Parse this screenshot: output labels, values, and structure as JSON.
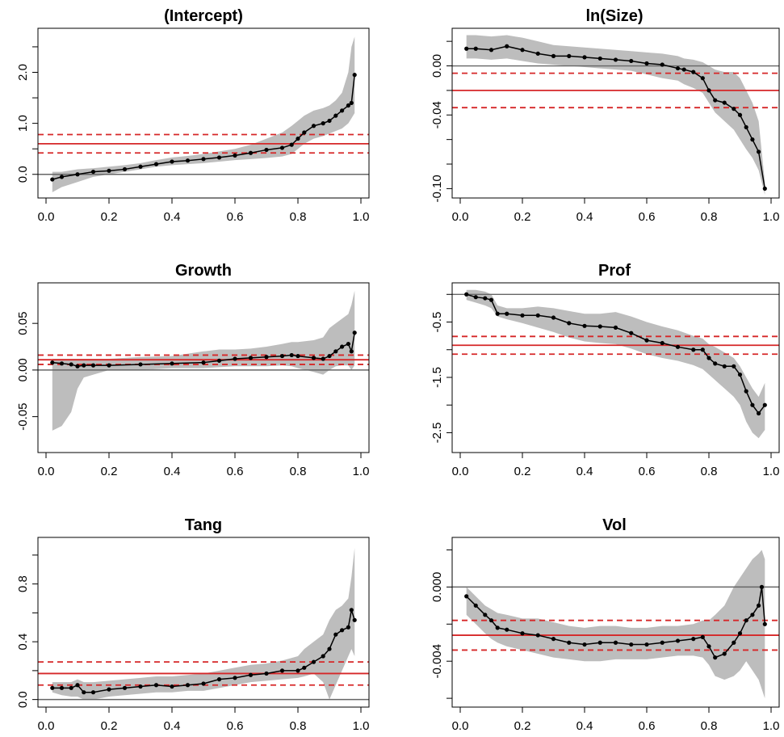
{
  "chart_data": [
    {
      "type": "line",
      "title": "(Intercept)",
      "xlabel": "",
      "ylabel": "",
      "xlim": [
        0,
        1
      ],
      "ylim": [
        -0.4,
        2.8
      ],
      "xticks": [
        "0.0",
        "0.2",
        "0.4",
        "0.6",
        "0.8",
        "1.0"
      ],
      "yticks": [
        "0.0",
        "1.0",
        "2.0"
      ],
      "ytick_values": [
        0.0,
        1.0,
        2.0
      ],
      "ytick_minor": [
        0.5,
        1.5,
        2.5
      ],
      "zero_line": 0,
      "ols": {
        "estimate": 0.6,
        "ci_low": 0.42,
        "ci_high": 0.78
      },
      "x": [
        0.02,
        0.05,
        0.1,
        0.15,
        0.2,
        0.25,
        0.3,
        0.35,
        0.4,
        0.45,
        0.5,
        0.55,
        0.6,
        0.65,
        0.7,
        0.75,
        0.78,
        0.8,
        0.82,
        0.85,
        0.88,
        0.9,
        0.92,
        0.94,
        0.96,
        0.97,
        0.98
      ],
      "y": [
        -0.1,
        -0.05,
        0.0,
        0.05,
        0.07,
        0.1,
        0.15,
        0.2,
        0.25,
        0.27,
        0.3,
        0.33,
        0.37,
        0.42,
        0.48,
        0.52,
        0.58,
        0.7,
        0.82,
        0.95,
        1.0,
        1.05,
        1.15,
        1.25,
        1.35,
        1.4,
        1.95
      ],
      "band_low": [
        -0.35,
        -0.25,
        -0.15,
        -0.05,
        0.0,
        0.05,
        0.1,
        0.15,
        0.18,
        0.2,
        0.22,
        0.25,
        0.28,
        0.3,
        0.32,
        0.35,
        0.4,
        0.5,
        0.6,
        0.7,
        0.75,
        0.8,
        0.85,
        0.9,
        1.0,
        1.1,
        1.2
      ],
      "band_high": [
        0.05,
        0.05,
        0.1,
        0.12,
        0.15,
        0.18,
        0.22,
        0.28,
        0.33,
        0.36,
        0.4,
        0.45,
        0.5,
        0.58,
        0.7,
        0.82,
        0.95,
        1.05,
        1.15,
        1.25,
        1.3,
        1.35,
        1.45,
        1.6,
        2.0,
        2.5,
        2.7
      ]
    },
    {
      "type": "line",
      "title": "ln(Size)",
      "xlabel": "",
      "ylabel": "",
      "xlim": [
        0,
        1
      ],
      "ylim": [
        -0.105,
        0.028
      ],
      "xticks": [
        "0.0",
        "0.2",
        "0.4",
        "0.6",
        "0.8",
        "1.0"
      ],
      "yticks": [
        "0.00",
        "-0.04",
        "-0.10"
      ],
      "ytick_values": [
        0.0,
        -0.04,
        -0.1
      ],
      "ytick_minor": [
        0.02,
        -0.02,
        -0.06,
        -0.08
      ],
      "zero_line": 0,
      "ols": {
        "estimate": -0.02,
        "ci_low": -0.034,
        "ci_high": -0.006
      },
      "x": [
        0.02,
        0.05,
        0.1,
        0.15,
        0.2,
        0.25,
        0.3,
        0.35,
        0.4,
        0.45,
        0.5,
        0.55,
        0.6,
        0.65,
        0.7,
        0.72,
        0.75,
        0.78,
        0.8,
        0.82,
        0.85,
        0.88,
        0.9,
        0.92,
        0.94,
        0.96,
        0.98
      ],
      "y": [
        0.014,
        0.014,
        0.013,
        0.016,
        0.013,
        0.01,
        0.008,
        0.008,
        0.007,
        0.006,
        0.005,
        0.004,
        0.002,
        0.001,
        -0.002,
        -0.003,
        -0.005,
        -0.01,
        -0.02,
        -0.028,
        -0.03,
        -0.035,
        -0.04,
        -0.05,
        -0.06,
        -0.07,
        -0.1
      ],
      "band_low": [
        0.006,
        0.006,
        0.005,
        0.006,
        0.004,
        0.002,
        0.001,
        0.0,
        -0.001,
        -0.002,
        -0.003,
        -0.004,
        -0.007,
        -0.01,
        -0.012,
        -0.015,
        -0.018,
        -0.022,
        -0.03,
        -0.038,
        -0.045,
        -0.052,
        -0.06,
        -0.068,
        -0.075,
        -0.085,
        -0.105
      ],
      "band_high": [
        0.025,
        0.025,
        0.024,
        0.025,
        0.023,
        0.02,
        0.017,
        0.016,
        0.015,
        0.014,
        0.013,
        0.012,
        0.011,
        0.01,
        0.008,
        0.006,
        0.005,
        0.003,
        0.0,
        -0.003,
        -0.005,
        -0.005,
        -0.01,
        -0.02,
        -0.03,
        -0.045,
        -0.095
      ]
    },
    {
      "type": "line",
      "title": "Growth",
      "xlabel": "",
      "ylabel": "",
      "xlim": [
        0,
        1
      ],
      "ylim": [
        -0.085,
        0.09
      ],
      "xticks": [
        "0.0",
        "0.2",
        "0.4",
        "0.6",
        "0.8",
        "1.0"
      ],
      "yticks": [
        "-0.05",
        "0.00",
        "0.05"
      ],
      "ytick_values": [
        -0.05,
        0.0,
        0.05
      ],
      "ytick_minor": [],
      "zero_line": 0,
      "ols": {
        "estimate": 0.011,
        "ci_low": 0.006,
        "ci_high": 0.016
      },
      "x": [
        0.02,
        0.05,
        0.08,
        0.1,
        0.12,
        0.15,
        0.2,
        0.3,
        0.4,
        0.5,
        0.55,
        0.6,
        0.65,
        0.7,
        0.75,
        0.78,
        0.8,
        0.85,
        0.88,
        0.9,
        0.92,
        0.94,
        0.96,
        0.97,
        0.98
      ],
      "y": [
        0.008,
        0.007,
        0.006,
        0.004,
        0.005,
        0.005,
        0.005,
        0.006,
        0.007,
        0.008,
        0.01,
        0.012,
        0.013,
        0.014,
        0.015,
        0.016,
        0.015,
        0.013,
        0.012,
        0.015,
        0.02,
        0.025,
        0.028,
        0.02,
        0.04
      ],
      "band_low": [
        -0.065,
        -0.06,
        -0.045,
        -0.02,
        -0.008,
        -0.005,
        0.0,
        0.0,
        0.002,
        0.002,
        0.003,
        0.004,
        0.004,
        0.004,
        0.005,
        0.004,
        0.002,
        -0.002,
        -0.005,
        0.0,
        0.004,
        0.005,
        0.005,
        0.0,
        0.005
      ],
      "band_high": [
        0.012,
        0.012,
        0.012,
        0.012,
        0.012,
        0.012,
        0.012,
        0.014,
        0.015,
        0.02,
        0.022,
        0.022,
        0.023,
        0.025,
        0.028,
        0.03,
        0.03,
        0.032,
        0.035,
        0.045,
        0.05,
        0.055,
        0.06,
        0.07,
        0.085
      ]
    },
    {
      "type": "line",
      "title": "Prof",
      "xlabel": "",
      "ylabel": "",
      "xlim": [
        0,
        1
      ],
      "ylim": [
        -2.8,
        0.15
      ],
      "xticks": [
        "0.0",
        "0.2",
        "0.4",
        "0.6",
        "0.8",
        "1.0"
      ],
      "yticks": [
        "-0.5",
        "-1.5",
        "-2.5"
      ],
      "ytick_values": [
        -0.5,
        -1.5,
        -2.5
      ],
      "ytick_minor": [
        0.0,
        -1.0,
        -2.0
      ],
      "zero_line": 0,
      "ols": {
        "estimate": -0.92,
        "ci_low": -1.08,
        "ci_high": -0.76
      },
      "x": [
        0.02,
        0.05,
        0.08,
        0.1,
        0.12,
        0.15,
        0.2,
        0.25,
        0.3,
        0.35,
        0.4,
        0.45,
        0.5,
        0.55,
        0.6,
        0.65,
        0.7,
        0.75,
        0.78,
        0.8,
        0.82,
        0.85,
        0.88,
        0.9,
        0.92,
        0.94,
        0.96,
        0.98
      ],
      "y": [
        0.0,
        -0.05,
        -0.07,
        -0.1,
        -0.35,
        -0.35,
        -0.38,
        -0.38,
        -0.42,
        -0.52,
        -0.57,
        -0.58,
        -0.6,
        -0.7,
        -0.83,
        -0.88,
        -0.95,
        -1.0,
        -1.0,
        -1.15,
        -1.25,
        -1.3,
        -1.3,
        -1.45,
        -1.75,
        -2.0,
        -2.15,
        -2.0
      ],
      "band_low": [
        -0.1,
        -0.15,
        -0.2,
        -0.25,
        -0.4,
        -0.45,
        -0.52,
        -0.6,
        -0.68,
        -0.78,
        -0.85,
        -0.88,
        -0.9,
        -0.98,
        -1.08,
        -1.15,
        -1.2,
        -1.28,
        -1.35,
        -1.45,
        -1.55,
        -1.7,
        -1.85,
        -2.0,
        -2.3,
        -2.5,
        -2.6,
        -2.45
      ],
      "band_high": [
        0.08,
        0.08,
        0.05,
        0.0,
        -0.2,
        -0.25,
        -0.25,
        -0.22,
        -0.25,
        -0.3,
        -0.35,
        -0.35,
        -0.32,
        -0.4,
        -0.5,
        -0.58,
        -0.65,
        -0.75,
        -0.8,
        -0.9,
        -0.95,
        -1.05,
        -1.15,
        -1.3,
        -1.5,
        -1.7,
        -1.85,
        -1.6
      ]
    },
    {
      "type": "line",
      "title": "Tang",
      "xlabel": "",
      "ylabel": "",
      "xlim": [
        0,
        1
      ],
      "ylim": [
        -0.03,
        1.1
      ],
      "xticks": [
        "0.0",
        "0.2",
        "0.4",
        "0.6",
        "0.8",
        "1.0"
      ],
      "yticks": [
        "0.0",
        "0.4",
        "0.8"
      ],
      "ytick_values": [
        0.0,
        0.4,
        0.8
      ],
      "ytick_minor": [
        0.2,
        0.6,
        1.0
      ],
      "zero_line": 0,
      "ols": {
        "estimate": 0.18,
        "ci_low": 0.1,
        "ci_high": 0.26
      },
      "x": [
        0.02,
        0.05,
        0.08,
        0.1,
        0.12,
        0.15,
        0.2,
        0.25,
        0.3,
        0.35,
        0.4,
        0.45,
        0.5,
        0.55,
        0.6,
        0.65,
        0.7,
        0.75,
        0.8,
        0.82,
        0.85,
        0.88,
        0.9,
        0.92,
        0.94,
        0.96,
        0.97,
        0.98
      ],
      "y": [
        0.08,
        0.08,
        0.08,
        0.1,
        0.05,
        0.05,
        0.07,
        0.08,
        0.09,
        0.1,
        0.09,
        0.1,
        0.11,
        0.14,
        0.15,
        0.17,
        0.18,
        0.2,
        0.2,
        0.22,
        0.26,
        0.3,
        0.35,
        0.45,
        0.48,
        0.5,
        0.62,
        0.55
      ],
      "band_low": [
        0.05,
        0.03,
        0.02,
        0.02,
        0.0,
        0.0,
        0.02,
        0.03,
        0.04,
        0.05,
        0.05,
        0.06,
        0.06,
        0.08,
        0.1,
        0.12,
        0.13,
        0.14,
        0.15,
        0.16,
        0.18,
        0.12,
        0.0,
        0.1,
        0.2,
        0.3,
        0.35,
        0.3
      ],
      "band_high": [
        0.12,
        0.12,
        0.12,
        0.14,
        0.12,
        0.12,
        0.13,
        0.14,
        0.15,
        0.16,
        0.16,
        0.17,
        0.18,
        0.2,
        0.22,
        0.24,
        0.25,
        0.27,
        0.3,
        0.35,
        0.4,
        0.45,
        0.55,
        0.62,
        0.65,
        0.7,
        0.85,
        1.05
      ]
    },
    {
      "type": "line",
      "title": "Vol",
      "xlabel": "",
      "ylabel": "",
      "xlim": [
        0,
        1
      ],
      "ylim": [
        -0.0063,
        0.0025
      ],
      "xticks": [
        "0.0",
        "0.2",
        "0.4",
        "0.6",
        "0.8",
        "1.0"
      ],
      "yticks": [
        "0.000",
        "-0.004"
      ],
      "ytick_values": [
        0.0,
        -0.004
      ],
      "ytick_minor": [
        0.002,
        -0.002,
        -0.006
      ],
      "zero_line": 0,
      "ols": {
        "estimate": -0.0026,
        "ci_low": -0.0034,
        "ci_high": -0.0018
      },
      "x": [
        0.02,
        0.05,
        0.08,
        0.1,
        0.12,
        0.15,
        0.2,
        0.25,
        0.3,
        0.35,
        0.4,
        0.45,
        0.5,
        0.55,
        0.6,
        0.65,
        0.7,
        0.75,
        0.78,
        0.8,
        0.82,
        0.85,
        0.88,
        0.9,
        0.92,
        0.94,
        0.96,
        0.97,
        0.98
      ],
      "y": [
        -0.0005,
        -0.001,
        -0.0015,
        -0.0018,
        -0.0022,
        -0.0023,
        -0.0025,
        -0.0026,
        -0.0028,
        -0.003,
        -0.0031,
        -0.003,
        -0.003,
        -0.0031,
        -0.0031,
        -0.003,
        -0.0029,
        -0.0028,
        -0.0027,
        -0.0032,
        -0.0038,
        -0.0036,
        -0.003,
        -0.0025,
        -0.0018,
        -0.0015,
        -0.001,
        0.0,
        -0.002
      ],
      "band_low": [
        -0.0015,
        -0.002,
        -0.0025,
        -0.0028,
        -0.003,
        -0.0032,
        -0.0034,
        -0.0036,
        -0.0038,
        -0.0039,
        -0.004,
        -0.004,
        -0.0039,
        -0.0039,
        -0.0039,
        -0.0038,
        -0.0037,
        -0.0037,
        -0.0038,
        -0.0042,
        -0.0048,
        -0.005,
        -0.0048,
        -0.0045,
        -0.004,
        -0.0045,
        -0.005,
        -0.0055,
        -0.006
      ],
      "band_high": [
        0.0,
        -0.0005,
        -0.001,
        -0.0012,
        -0.0014,
        -0.0015,
        -0.0017,
        -0.0017,
        -0.0019,
        -0.0021,
        -0.0022,
        -0.0021,
        -0.0021,
        -0.0022,
        -0.0022,
        -0.0021,
        -0.0021,
        -0.002,
        -0.0018,
        -0.0018,
        -0.0015,
        -0.001,
        0.0,
        0.0005,
        0.001,
        0.0015,
        0.0018,
        0.002,
        0.0015
      ]
    }
  ]
}
